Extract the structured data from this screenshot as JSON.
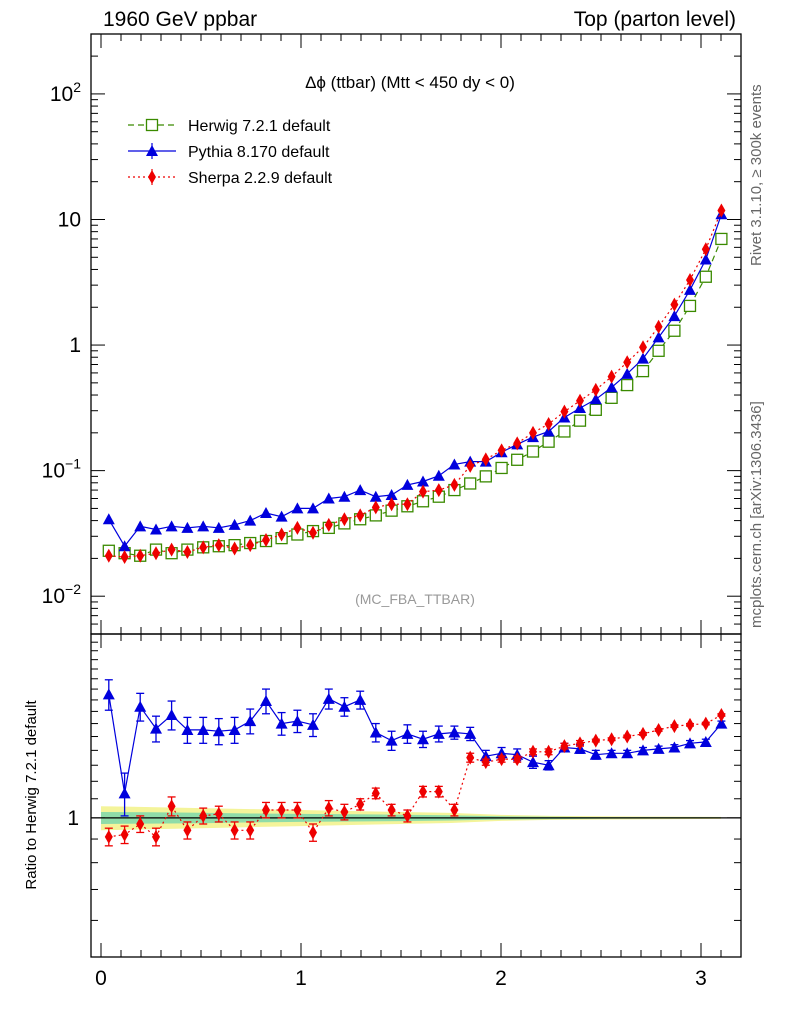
{
  "header": {
    "left": "1960 GeV ppbar",
    "right": "Top (parton level)"
  },
  "side_labels": {
    "rivet": "Rivet 3.1.10, ≥ 300k events",
    "mcplots": "mcplots.cern.ch [arXiv:1306.3436]"
  },
  "watermark": "(MC_FBA_TTBAR)",
  "colors": {
    "herwig": "#3a8a00",
    "pythia": "#0000dd",
    "sherpa": "#ee0000",
    "band_outer": "#f4f49a",
    "band_inner": "#8fdca8"
  },
  "chart_data": [
    {
      "type": "scatter",
      "panel": "main",
      "title": "Δϕ (ttbar) (Mtt < 450 dy < 0)",
      "log_y": true,
      "xlim": [
        -0.05,
        3.2
      ],
      "ylim": [
        0.005,
        300
      ],
      "y_tick_labels": [
        "10^-2",
        "10^-1",
        "1",
        "10",
        "10^2"
      ],
      "legend_position": "top-left",
      "x": [
        0.039,
        0.118,
        0.196,
        0.275,
        0.353,
        0.432,
        0.511,
        0.589,
        0.668,
        0.746,
        0.825,
        0.903,
        0.982,
        1.06,
        1.139,
        1.217,
        1.296,
        1.374,
        1.453,
        1.532,
        1.61,
        1.689,
        1.767,
        1.846,
        1.924,
        2.003,
        2.081,
        2.16,
        2.238,
        2.317,
        2.395,
        2.474,
        2.553,
        2.631,
        2.71,
        2.788,
        2.867,
        2.945,
        3.024,
        3.102
      ],
      "series": [
        {
          "name": "Herwig 7.2.1 default",
          "marker": "open-square",
          "line": "dashed",
          "values": [
            0.023,
            0.022,
            0.021,
            0.0235,
            0.022,
            0.0235,
            0.0245,
            0.025,
            0.0255,
            0.0265,
            0.0275,
            0.029,
            0.031,
            0.033,
            0.035,
            0.038,
            0.041,
            0.044,
            0.048,
            0.052,
            0.057,
            0.062,
            0.07,
            0.079,
            0.09,
            0.105,
            0.122,
            0.142,
            0.17,
            0.205,
            0.25,
            0.305,
            0.38,
            0.48,
            0.62,
            0.9,
            1.3,
            2.05,
            3.5,
            7.0
          ]
        },
        {
          "name": "Pythia 8.170 default",
          "marker": "filled-triangle",
          "line": "solid",
          "values": [
            0.041,
            0.025,
            0.036,
            0.034,
            0.036,
            0.035,
            0.036,
            0.035,
            0.037,
            0.04,
            0.046,
            0.043,
            0.05,
            0.05,
            0.06,
            0.062,
            0.07,
            0.062,
            0.064,
            0.077,
            0.082,
            0.091,
            0.112,
            0.118,
            0.118,
            0.14,
            0.162,
            0.185,
            0.205,
            0.265,
            0.315,
            0.37,
            0.46,
            0.59,
            0.78,
            1.15,
            1.7,
            2.75,
            4.8,
            11.0
          ]
        },
        {
          "name": "Sherpa 2.2.9 default",
          "marker": "filled-diamond",
          "line": "dotted",
          "values": [
            0.021,
            0.0205,
            0.021,
            0.022,
            0.0235,
            0.0225,
            0.0245,
            0.0255,
            0.024,
            0.0255,
            0.028,
            0.031,
            0.035,
            0.032,
            0.037,
            0.041,
            0.044,
            0.051,
            0.054,
            0.054,
            0.068,
            0.07,
            0.077,
            0.109,
            0.123,
            0.145,
            0.165,
            0.2,
            0.235,
            0.295,
            0.36,
            0.44,
            0.56,
            0.73,
            0.96,
            1.4,
            2.1,
            3.3,
            5.8,
            11.8
          ]
        }
      ]
    },
    {
      "type": "scatter",
      "panel": "ratio",
      "ylabel": "Ratio to Herwig 7.2.1 default",
      "log_y": true,
      "xlim": [
        -0.05,
        3.2
      ],
      "ylim": [
        0.5,
        2.5
      ],
      "x_ticks": [
        0,
        1,
        2,
        3
      ],
      "y_ticks": [
        1
      ],
      "reference_band": {
        "x": [
          0.0,
          0.25,
          0.5,
          0.75,
          1.0,
          1.25,
          1.5,
          1.75,
          2.0,
          2.25,
          2.5,
          3.1
        ],
        "outer": [
          0.06,
          0.055,
          0.05,
          0.045,
          0.04,
          0.035,
          0.03,
          0.025,
          0.015,
          0.01,
          0.008,
          0.005
        ],
        "inner": [
          0.03,
          0.028,
          0.026,
          0.022,
          0.02,
          0.018,
          0.016,
          0.013,
          0.008,
          0.006,
          0.004,
          0.003
        ]
      },
      "series": [
        {
          "name": "Pythia 8.170 default",
          "values": [
            1.85,
            1.13,
            1.74,
            1.56,
            1.67,
            1.55,
            1.55,
            1.54,
            1.55,
            1.62,
            1.79,
            1.6,
            1.62,
            1.59,
            1.81,
            1.74,
            1.8,
            1.53,
            1.47,
            1.52,
            1.48,
            1.52,
            1.53,
            1.52,
            1.36,
            1.38,
            1.37,
            1.32,
            1.3,
            1.42,
            1.41,
            1.37,
            1.38,
            1.38,
            1.4,
            1.41,
            1.42,
            1.45,
            1.46,
            1.6
          ],
          "errors": [
            0.14,
            0.12,
            0.12,
            0.1,
            0.12,
            0.1,
            0.1,
            0.1,
            0.1,
            0.1,
            0.11,
            0.09,
            0.09,
            0.09,
            0.09,
            0.08,
            0.08,
            0.07,
            0.07,
            0.07,
            0.06,
            0.06,
            0.05,
            0.05,
            0.04,
            0.04,
            0.04,
            0.04,
            0.03,
            0.03,
            0.03,
            0.03,
            0.02,
            0.02,
            0.02,
            0.02,
            0.02,
            0.02,
            0.02,
            0.02
          ]
        },
        {
          "name": "Sherpa 2.2.9 default",
          "values": [
            0.91,
            0.92,
            0.97,
            0.91,
            1.06,
            0.94,
            1.01,
            1.02,
            0.94,
            0.94,
            1.04,
            1.04,
            1.04,
            0.93,
            1.05,
            1.03,
            1.07,
            1.13,
            1.04,
            1.01,
            1.14,
            1.14,
            1.04,
            1.35,
            1.32,
            1.34,
            1.34,
            1.39,
            1.39,
            1.43,
            1.45,
            1.47,
            1.48,
            1.5,
            1.52,
            1.55,
            1.58,
            1.59,
            1.6,
            1.67
          ],
          "errors": [
            0.04,
            0.04,
            0.04,
            0.04,
            0.05,
            0.04,
            0.04,
            0.04,
            0.04,
            0.04,
            0.04,
            0.04,
            0.04,
            0.04,
            0.04,
            0.04,
            0.03,
            0.03,
            0.03,
            0.03,
            0.03,
            0.03,
            0.03,
            0.03,
            0.02,
            0.02,
            0.02,
            0.02,
            0.02,
            0.02,
            0.02,
            0.01,
            0.01,
            0.01,
            0.01,
            0.01,
            0.01,
            0.01,
            0.01,
            0.01
          ]
        }
      ]
    }
  ]
}
